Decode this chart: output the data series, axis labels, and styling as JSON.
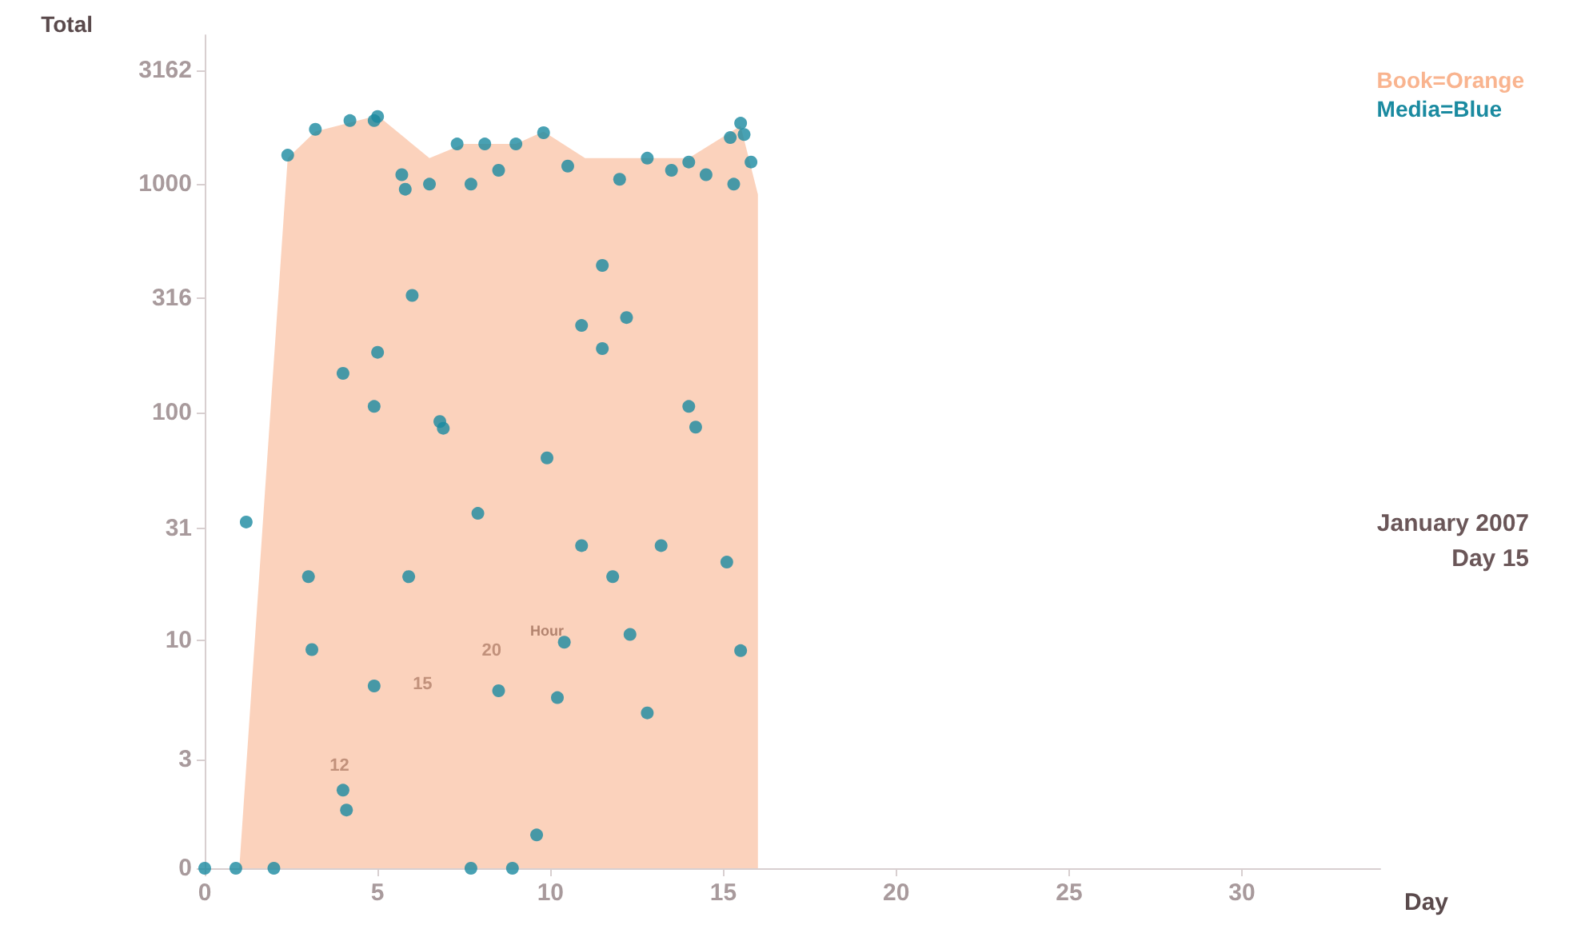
{
  "chart_data": {
    "type": "scatter",
    "ylabel": "Total",
    "xlabel": "Day",
    "log": "y",
    "grid": false,
    "legend": "top right",
    "xlim": [
      0,
      34
    ],
    "xticks": [
      0,
      5,
      10,
      15,
      20,
      25,
      30
    ],
    "ylim": [
      0,
      4500
    ],
    "yticks": [
      0,
      3,
      10,
      31,
      100,
      316,
      1000,
      3162
    ],
    "series": [
      {
        "name": "Book=Orange",
        "type": "area",
        "color": "#f9b48f",
        "x": [
          0,
          1,
          2.4,
          3.2,
          5,
          6.5,
          7.5,
          9,
          9.8,
          11,
          14,
          15.5,
          16,
          16
        ],
        "values": [
          1,
          1,
          1300,
          1700,
          2000,
          1300,
          1500,
          1500,
          1700,
          1300,
          1300,
          1800,
          900,
          8
        ]
      },
      {
        "name": "Media=Blue",
        "color": "#1a8aa0",
        "marker": "circle",
        "x": [
          0,
          0.9,
          2,
          1.2,
          2.4,
          3,
          3.2,
          3.1,
          4,
          4.1,
          4,
          4.2,
          4.9,
          5,
          4.9,
          4.9,
          5,
          5.7,
          5.8,
          5.9,
          6,
          6.8,
          6.9,
          7.3,
          7.7,
          7.9,
          8.1,
          8.5,
          8.9,
          9,
          9.6,
          9.8,
          9.9,
          10.2,
          10.4,
          10.9,
          10.9,
          11.5,
          11.5,
          11.8,
          12.2,
          12.3,
          12.8,
          13.2,
          14,
          14.2,
          14.5,
          15.1,
          15.2,
          15.5,
          15.6,
          15.3,
          15.8,
          15.5,
          10.5,
          12,
          12.8,
          13.5,
          14,
          6.5,
          7.7,
          8.5
        ],
        "values": [
          1,
          1,
          1,
          33,
          1340,
          19,
          1740,
          9.1,
          2.2,
          1.8,
          148,
          1900,
          1900,
          1980,
          6.3,
          106,
          183,
          1100,
          950,
          19,
          325,
          91,
          85,
          1500,
          1,
          36,
          1500,
          6,
          1,
          1500,
          1.4,
          1680,
          63,
          5.6,
          9.8,
          26,
          240,
          190,
          440,
          19,
          260,
          10.6,
          4.8,
          26,
          106,
          86,
          1100,
          22,
          1600,
          1850,
          1650,
          1000,
          1250,
          9,
          1200,
          1050,
          1300,
          1150,
          1250,
          1000,
          1000,
          1150
        ]
      }
    ],
    "annotations": [
      "January 2007",
      "Day 15",
      "Hour",
      "20",
      "15",
      "12"
    ]
  }
}
